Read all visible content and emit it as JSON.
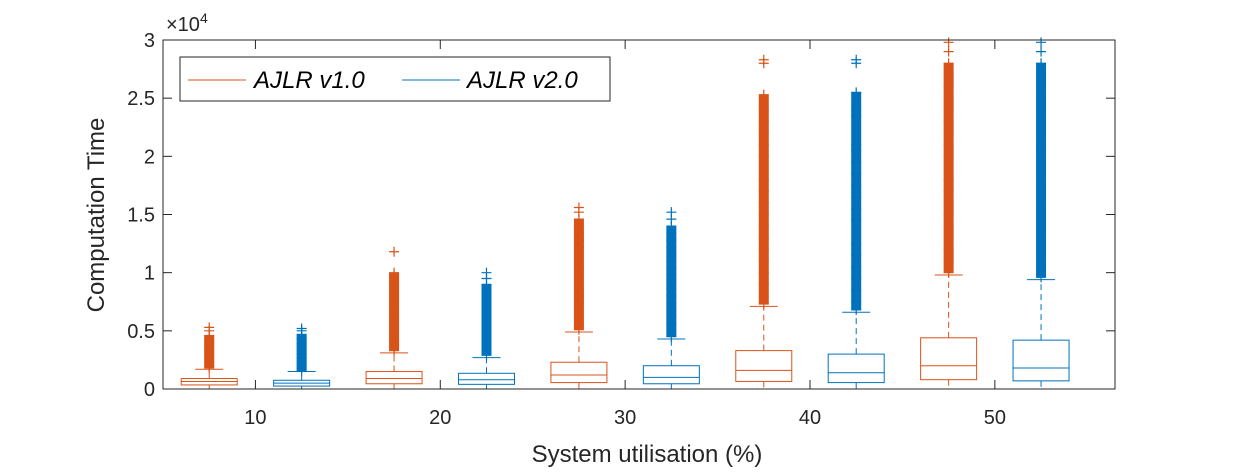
{
  "chart_data": {
    "type": "box",
    "title": "",
    "xlabel": "System utilisation (%)",
    "ylabel": "Computation Time",
    "ylim": [
      0,
      30000
    ],
    "y_exponent_label": {
      "base": "×10",
      "exp": "4"
    },
    "y_ticks": [
      {
        "value": 0,
        "label": "0"
      },
      {
        "value": 5000,
        "label": "0.5"
      },
      {
        "value": 10000,
        "label": "1"
      },
      {
        "value": 15000,
        "label": "1.5"
      },
      {
        "value": 20000,
        "label": "2"
      },
      {
        "value": 25000,
        "label": "2.5"
      },
      {
        "value": 30000,
        "label": "3"
      }
    ],
    "xlim": [
      5,
      56.5
    ],
    "x_ticks": [
      {
        "value": 10,
        "label": "10"
      },
      {
        "value": 20,
        "label": "20"
      },
      {
        "value": 30,
        "label": "30"
      },
      {
        "value": 40,
        "label": "40"
      },
      {
        "value": 50,
        "label": "50"
      }
    ],
    "grid": false,
    "legend": {
      "placement": "top-left"
    },
    "series": [
      {
        "name": "AJLR v1.0",
        "color": "#D95319",
        "boxes": [
          {
            "x": 7.5,
            "whisker_low": 0,
            "q1": 350,
            "median": 650,
            "q3": 900,
            "whisker_high": 1700,
            "outliers": [
              1800,
              2000,
              2300,
              2600,
              2900,
              3100,
              3300,
              3500,
              3700,
              3900,
              4100,
              4300,
              4600,
              5000,
              5300
            ]
          },
          {
            "x": 17.5,
            "whisker_low": 0,
            "q1": 450,
            "median": 900,
            "q3": 1500,
            "whisker_high": 3100,
            "outliers": [
              3300,
              3600,
              4000,
              4500,
              5000,
              5500,
              6000,
              6500,
              7000,
              7500,
              8000,
              8500,
              8700,
              9200,
              9700,
              10000,
              11800
            ]
          },
          {
            "x": 27.5,
            "whisker_low": 0,
            "q1": 550,
            "median": 1200,
            "q3": 2300,
            "whisker_high": 4900,
            "outliers": [
              5100,
              5600,
              6200,
              6800,
              7400,
              8000,
              8600,
              9200,
              9800,
              10400,
              11000,
              11600,
              12200,
              12800,
              13400,
              14000,
              14600,
              15200,
              15600
            ]
          },
          {
            "x": 37.5,
            "whisker_low": 0,
            "q1": 650,
            "median": 1600,
            "q3": 3300,
            "whisker_high": 7100,
            "outliers": [
              7300,
              8000,
              9000,
              10000,
              11000,
              12000,
              13000,
              14000,
              15000,
              16000,
              17000,
              18000,
              19000,
              20000,
              21000,
              22000,
              23000,
              24000,
              25300,
              28000,
              28300
            ]
          },
          {
            "x": 47.5,
            "whisker_low": 0,
            "q1": 800,
            "median": 2000,
            "q3": 4400,
            "whisker_high": 9800,
            "outliers": [
              10000,
              11000,
              12000,
              13000,
              14000,
              15000,
              16000,
              17000,
              18000,
              19000,
              20000,
              21000,
              22000,
              23000,
              24000,
              25000,
              26000,
              27000,
              28000,
              29000,
              29800
            ]
          }
        ]
      },
      {
        "name": "AJLR v2.0",
        "color": "#0072BD",
        "boxes": [
          {
            "x": 12.5,
            "whisker_low": 0,
            "q1": 250,
            "median": 500,
            "q3": 750,
            "whisker_high": 1500,
            "outliers": [
              1600,
              1800,
              2100,
              2400,
              2700,
              3000,
              3300,
              3600,
              3900,
              4200,
              4400,
              4700,
              5000,
              5200
            ]
          },
          {
            "x": 22.5,
            "whisker_low": 0,
            "q1": 400,
            "median": 800,
            "q3": 1350,
            "whisker_high": 2700,
            "outliers": [
              2900,
              3300,
              3800,
              4300,
              4800,
              5300,
              5800,
              6300,
              6800,
              7300,
              7800,
              8300,
              8600,
              9000,
              9500,
              10000
            ]
          },
          {
            "x": 32.5,
            "whisker_low": 0,
            "q1": 450,
            "median": 1000,
            "q3": 2000,
            "whisker_high": 4300,
            "outliers": [
              4500,
              5000,
              5600,
              6200,
              6800,
              7400,
              8000,
              8600,
              9200,
              9800,
              10400,
              11000,
              11600,
              12200,
              12800,
              13400,
              14000,
              14600,
              15200
            ]
          },
          {
            "x": 42.5,
            "whisker_low": 0,
            "q1": 550,
            "median": 1400,
            "q3": 3000,
            "whisker_high": 6600,
            "outliers": [
              6800,
              7500,
              8500,
              9500,
              10500,
              11500,
              12500,
              13500,
              14500,
              15500,
              16500,
              17500,
              18500,
              19500,
              20500,
              21000,
              23500,
              24000,
              25500,
              28000,
              28300
            ]
          },
          {
            "x": 52.5,
            "whisker_low": 0,
            "q1": 700,
            "median": 1800,
            "q3": 4200,
            "whisker_high": 9400,
            "outliers": [
              9600,
              10500,
              11500,
              12500,
              13500,
              14500,
              15500,
              16500,
              17500,
              18500,
              19500,
              20500,
              21000,
              22000,
              23000,
              24000,
              25000,
              26000,
              27000,
              28000,
              29000,
              29800
            ]
          }
        ]
      }
    ]
  }
}
